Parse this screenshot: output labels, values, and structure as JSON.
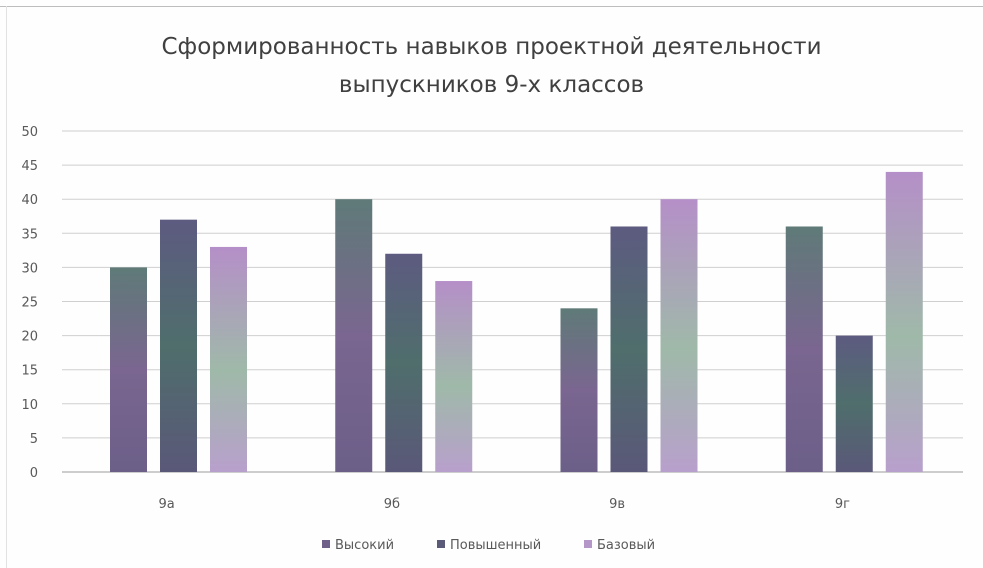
{
  "chart_data": {
    "type": "bar",
    "title_lines": [
      "Сформированность навыков проектной деятельности",
      "выпускников 9-х классов"
    ],
    "categories": [
      "9а",
      "9б",
      "9в",
      "9г"
    ],
    "series": [
      {
        "name": "Высокий",
        "values": [
          30,
          40,
          24,
          36
        ],
        "color": "#6e6088"
      },
      {
        "name": "Повышенный",
        "values": [
          37,
          32,
          36,
          20
        ],
        "color": "#5b5a78"
      },
      {
        "name": "Базовый",
        "values": [
          33,
          28,
          40,
          44
        ],
        "color": "#b596c8"
      }
    ],
    "y_ticks": [
      "0",
      "5",
      "10",
      "15",
      "20",
      "25",
      "30",
      "35",
      "40",
      "45",
      "50"
    ],
    "ylim": [
      0,
      50
    ],
    "grid": true,
    "legend": "bottom"
  }
}
